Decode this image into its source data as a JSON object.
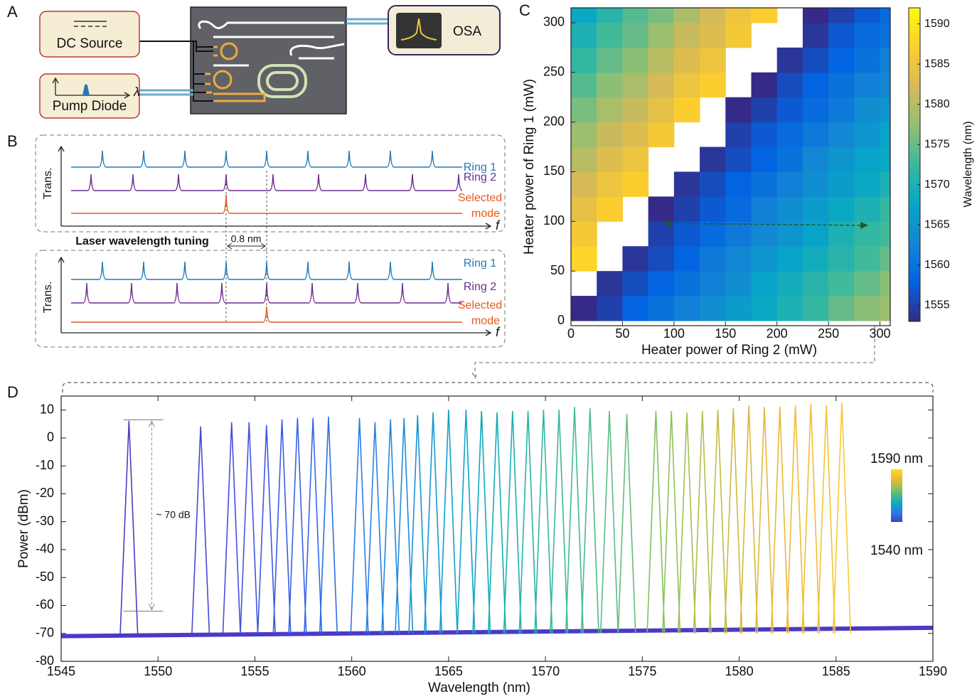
{
  "panel_labels": [
    "A",
    "B",
    "C",
    "D"
  ],
  "setup": {
    "dc_source": "DC Source",
    "pump_diode": "Pump Diode",
    "lambda": "λ",
    "osa": "OSA"
  },
  "tuning": {
    "title": "Laser wavelength tuning",
    "spacing": "0.8 nm",
    "upper": {
      "ring1": "Ring 1",
      "ring2": "Ring 2",
      "selected": [
        "Selected",
        "mode"
      ],
      "ylabel": "Trans.",
      "xlabel": "f"
    },
    "lower": {
      "ring1": "Ring 1",
      "ring2": "Ring 2",
      "selected": [
        "Selected",
        "mode"
      ],
      "ylabel": "Trans.",
      "xlabel": "f"
    }
  },
  "chart_data": [
    {
      "type": "heatmap",
      "xlabel": "Heater power of Ring 2 (mW)",
      "ylabel": "Heater power of Ring 1 (mW)",
      "xlim": [
        0,
        310
      ],
      "ylim": [
        -5,
        315
      ],
      "xticks": [
        0,
        50,
        100,
        150,
        200,
        250,
        300
      ],
      "yticks": [
        0,
        50,
        100,
        150,
        200,
        250,
        300
      ],
      "x_bins": [
        0,
        25,
        50,
        75,
        100,
        125,
        150,
        175,
        200,
        225,
        250,
        275,
        300,
        310
      ],
      "y_bins": [
        0,
        25,
        50,
        75,
        100,
        125,
        150,
        175,
        200,
        225,
        250,
        275,
        300,
        315
      ],
      "z": [
        [
          1553,
          1555,
          1558,
          1560,
          1562,
          1564,
          1566,
          1568,
          1570,
          1572,
          1575,
          1577,
          1578
        ],
        [
          null,
          1554,
          1556,
          1558,
          1560,
          1562,
          1564,
          1567,
          1569,
          1571,
          1573,
          1575,
          1577
        ],
        [
          1588,
          null,
          1554,
          1556,
          1558,
          1561,
          1563,
          1565,
          1567,
          1569,
          1571,
          1573,
          1575
        ],
        [
          1586,
          null,
          null,
          1555,
          1557,
          1559,
          1561,
          1563,
          1565,
          1567,
          1570,
          1572,
          1573
        ],
        [
          1584,
          1587,
          null,
          1553,
          1555,
          1557,
          1559,
          1562,
          1564,
          1566,
          1568,
          1570,
          1572
        ],
        [
          1582,
          1585,
          1587,
          null,
          1554,
          1556,
          1558,
          1560,
          1562,
          1564,
          1566,
          1568,
          1570
        ],
        [
          1580,
          1583,
          1585,
          null,
          null,
          1554,
          1556,
          1558,
          1560,
          1563,
          1565,
          1567,
          1568
        ],
        [
          1578,
          1581,
          1583,
          1586,
          null,
          null,
          1555,
          1557,
          1559,
          1561,
          1563,
          1565,
          1567
        ],
        [
          1576,
          1579,
          1581,
          1584,
          1587,
          null,
          1553,
          1555,
          1557,
          1559,
          1561,
          1564,
          1565
        ],
        [
          1574,
          1577,
          1579,
          1582,
          1585,
          1587,
          null,
          1553,
          1556,
          1558,
          1560,
          1562,
          1563
        ],
        [
          1572,
          1575,
          1577,
          1580,
          1583,
          1585,
          null,
          null,
          1554,
          1556,
          1558,
          1560,
          1562
        ],
        [
          1570,
          1573,
          1575,
          1578,
          1581,
          1583,
          1586,
          null,
          null,
          1554,
          1557,
          1559,
          1560
        ],
        [
          1568,
          1571,
          1574,
          1576,
          1579,
          1582,
          1585,
          1587,
          null,
          1553,
          1555,
          1557,
          1559
        ]
      ],
      "colormap": [
        "#352a87",
        "#0363e1",
        "#1485d4",
        "#06a7c6",
        "#38b99e",
        "#92bf73",
        "#d9ba56",
        "#fcce2e",
        "#f9fb0e"
      ],
      "colorbar": {
        "label": "Wavelength (nm)",
        "lim": [
          1553,
          1592
        ],
        "ticks": [
          1555,
          1560,
          1565,
          1570,
          1575,
          1580,
          1585,
          1590
        ]
      },
      "arrow": {
        "x": [
          90,
          288
        ],
        "y": [
          98,
          96
        ],
        "color": "#1d5a2c"
      }
    },
    {
      "type": "line",
      "xlabel": "Wavelength (nm)",
      "ylabel": "Power (dBm)",
      "xlim": [
        1545,
        1590
      ],
      "ylim": [
        -80,
        15
      ],
      "xticks": [
        1545,
        1550,
        1555,
        1560,
        1565,
        1570,
        1575,
        1580,
        1585,
        1590
      ],
      "yticks": [
        -80,
        -70,
        -60,
        -50,
        -40,
        -30,
        -20,
        -10,
        0,
        10
      ],
      "annotation": {
        "text": "~ 70 dB",
        "x": 1548.5,
        "top": 6.5,
        "bottom": -62
      },
      "inset_colorbar": {
        "top_label": "1590 nm",
        "bottom_label": "1540 nm",
        "colors": [
          "#4a3bc6",
          "#2a7ae2",
          "#0ea4c8",
          "#44b892",
          "#a0c050",
          "#f0ba36",
          "#f9e020"
        ]
      },
      "series": [
        {
          "color": "#4a3bc6",
          "x": [
            1545,
            1590
          ],
          "values": [
            -71,
            -68
          ]
        },
        {
          "color": "#4a3bc6",
          "x": [
            1548.05,
            1548.5,
            1548.95
          ],
          "values": [
            -70,
            6,
            -70
          ]
        },
        {
          "color": "#4646d6",
          "x": [
            1551.75,
            1552.2,
            1552.65
          ],
          "values": [
            -70,
            4,
            -70
          ]
        },
        {
          "color": "#4350dc",
          "x": [
            1553.35,
            1553.8,
            1554.25
          ],
          "values": [
            -70,
            5.5,
            -70
          ]
        },
        {
          "color": "#4054de",
          "x": [
            1554.25,
            1554.7,
            1555.15
          ],
          "values": [
            -70,
            5.5,
            -70
          ]
        },
        {
          "color": "#3d58e0",
          "x": [
            1555.15,
            1555.6,
            1556.05
          ],
          "values": [
            -70,
            4.5,
            -70
          ]
        },
        {
          "color": "#3a5ce2",
          "x": [
            1555.95,
            1556.4,
            1556.85
          ],
          "values": [
            -70,
            6.5,
            -70
          ]
        },
        {
          "color": "#3662e4",
          "x": [
            1556.75,
            1557.2,
            1557.65
          ],
          "values": [
            -70,
            7,
            -70
          ]
        },
        {
          "color": "#3268e4",
          "x": [
            1557.55,
            1558.0,
            1558.45
          ],
          "values": [
            -70,
            7,
            -70
          ]
        },
        {
          "color": "#2e6ee4",
          "x": [
            1558.35,
            1558.8,
            1559.25
          ],
          "values": [
            -70,
            7.5,
            -70
          ]
        },
        {
          "color": "#2a7ae2",
          "x": [
            1559.95,
            1560.4,
            1560.85
          ],
          "values": [
            -70,
            7,
            -70
          ]
        },
        {
          "color": "#2680e0",
          "x": [
            1560.75,
            1561.2,
            1561.65
          ],
          "values": [
            -70,
            5.5,
            -70
          ]
        },
        {
          "color": "#2286dc",
          "x": [
            1561.55,
            1562.0,
            1562.45
          ],
          "values": [
            -70,
            6.5,
            -70
          ]
        },
        {
          "color": "#1e8cd8",
          "x": [
            1562.25,
            1562.7,
            1563.15
          ],
          "values": [
            -70,
            7,
            -70
          ]
        },
        {
          "color": "#1a92d4",
          "x": [
            1562.95,
            1563.4,
            1563.85
          ],
          "values": [
            -70,
            8,
            -70
          ]
        },
        {
          "color": "#1698d0",
          "x": [
            1563.75,
            1564.2,
            1564.65
          ],
          "values": [
            -70,
            9,
            -70
          ]
        },
        {
          "color": "#129ecc",
          "x": [
            1564.55,
            1565.0,
            1565.45
          ],
          "values": [
            -70,
            10,
            -70
          ]
        },
        {
          "color": "#0ea4c8",
          "x": [
            1565.45,
            1565.9,
            1566.35
          ],
          "values": [
            -70,
            10,
            -70
          ]
        },
        {
          "color": "#0ca8c2",
          "x": [
            1566.25,
            1566.7,
            1567.15
          ],
          "values": [
            -70,
            9.5,
            -70
          ]
        },
        {
          "color": "#12acba",
          "x": [
            1567.05,
            1567.5,
            1567.95
          ],
          "values": [
            -70,
            9,
            -70
          ]
        },
        {
          "color": "#1cb0b2",
          "x": [
            1567.85,
            1568.3,
            1568.75
          ],
          "values": [
            -70,
            9.5,
            -70
          ]
        },
        {
          "color": "#26b2aa",
          "x": [
            1568.65,
            1569.1,
            1569.55
          ],
          "values": [
            -70,
            9.5,
            -70
          ]
        },
        {
          "color": "#30b4a2",
          "x": [
            1569.45,
            1569.9,
            1570.35
          ],
          "values": [
            -70,
            10,
            -70
          ]
        },
        {
          "color": "#3ab69a",
          "x": [
            1570.25,
            1570.7,
            1571.15
          ],
          "values": [
            -70,
            10,
            -70
          ]
        },
        {
          "color": "#44b892",
          "x": [
            1571.05,
            1571.5,
            1571.95
          ],
          "values": [
            -70,
            11,
            -70
          ]
        },
        {
          "color": "#4eba8a",
          "x": [
            1571.85,
            1572.3,
            1572.75
          ],
          "values": [
            -70,
            10.5,
            -70
          ]
        },
        {
          "color": "#58bc82",
          "x": [
            1572.85,
            1573.3,
            1573.75
          ],
          "values": [
            -70,
            9.5,
            -70
          ]
        },
        {
          "color": "#62bd7a",
          "x": [
            1573.75,
            1574.2,
            1574.65
          ],
          "values": [
            -70,
            8.5,
            -70
          ]
        },
        {
          "color": "#80c060",
          "x": [
            1575.25,
            1575.7,
            1576.15
          ],
          "values": [
            -70,
            9.5,
            -70
          ]
        },
        {
          "color": "#90c058",
          "x": [
            1576.05,
            1576.5,
            1576.95
          ],
          "values": [
            -70,
            9.5,
            -70
          ]
        },
        {
          "color": "#a0c050",
          "x": [
            1576.85,
            1577.3,
            1577.75
          ],
          "values": [
            -70,
            9,
            -70
          ]
        },
        {
          "color": "#b0be4a",
          "x": [
            1577.65,
            1578.1,
            1578.55
          ],
          "values": [
            -70,
            9.5,
            -70
          ]
        },
        {
          "color": "#c0bc44",
          "x": [
            1578.45,
            1578.9,
            1579.35
          ],
          "values": [
            -70,
            10,
            -70
          ]
        },
        {
          "color": "#ccba40",
          "x": [
            1579.25,
            1579.7,
            1580.15
          ],
          "values": [
            -70,
            10.5,
            -70
          ]
        },
        {
          "color": "#d8b83c",
          "x": [
            1580.05,
            1580.5,
            1580.95
          ],
          "values": [
            -70,
            11.5,
            -70
          ]
        },
        {
          "color": "#e2b83a",
          "x": [
            1580.85,
            1581.3,
            1581.75
          ],
          "values": [
            -70,
            11,
            -70
          ]
        },
        {
          "color": "#eab838",
          "x": [
            1581.65,
            1582.1,
            1582.55
          ],
          "values": [
            -70,
            11,
            -70
          ]
        },
        {
          "color": "#f0ba36",
          "x": [
            1582.45,
            1582.9,
            1583.35
          ],
          "values": [
            -70,
            11.5,
            -70
          ]
        },
        {
          "color": "#f4bc34",
          "x": [
            1583.25,
            1583.7,
            1584.15
          ],
          "values": [
            -70,
            12,
            -70
          ]
        },
        {
          "color": "#f6c232",
          "x": [
            1584.05,
            1584.5,
            1584.95
          ],
          "values": [
            -70,
            11.5,
            -70
          ]
        },
        {
          "color": "#f8c830",
          "x": [
            1584.85,
            1585.3,
            1585.75
          ],
          "values": [
            -70,
            12.5,
            -70
          ]
        }
      ]
    }
  ]
}
